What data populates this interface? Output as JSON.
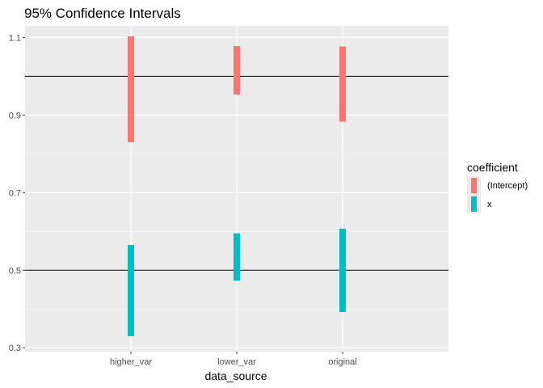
{
  "chart_data": {
    "type": "errorbar",
    "title": "95% Confidence Intervals",
    "xlabel": "data_source",
    "ylabel": "",
    "categories": [
      "higher_var",
      "lower_var",
      "original"
    ],
    "ylim": [
      0.29,
      1.13
    ],
    "yticks": [
      0.3,
      0.5,
      0.7,
      0.9,
      1.1
    ],
    "ytick_labels": [
      "0.3",
      "0.5",
      "0.7",
      "0.9",
      "1.1"
    ],
    "reference_lines": [
      1.0,
      0.5
    ],
    "grid": true,
    "legend": {
      "title": "coefficient",
      "position": "right"
    },
    "series": [
      {
        "name": "(Intercept)",
        "color": "#F8766D",
        "intervals": [
          {
            "category": "higher_var",
            "low": 0.83,
            "high": 1.103
          },
          {
            "category": "lower_var",
            "low": 0.953,
            "high": 1.078
          },
          {
            "category": "original",
            "low": 0.883,
            "high": 1.077
          }
        ]
      },
      {
        "name": "x",
        "color": "#00BFC4",
        "intervals": [
          {
            "category": "higher_var",
            "low": 0.33,
            "high": 0.565
          },
          {
            "category": "lower_var",
            "low": 0.473,
            "high": 0.595
          },
          {
            "category": "original",
            "low": 0.392,
            "high": 0.607
          }
        ]
      }
    ]
  },
  "colors": {
    "panel_background": "#EBEBEB",
    "grid_major": "#FFFFFF",
    "reference_line": "#000000"
  }
}
